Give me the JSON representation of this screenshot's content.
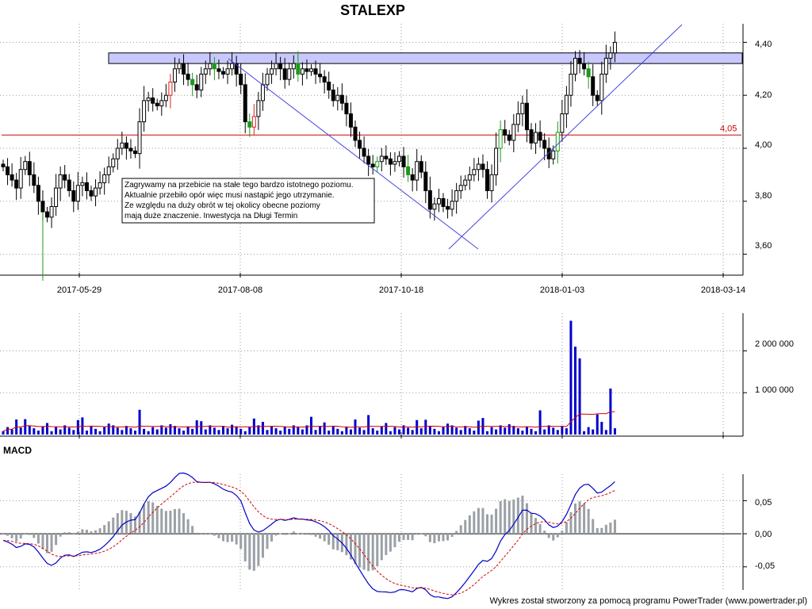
{
  "page": {
    "title": "STALEXP",
    "footer": "Wykres został stworzony za pomocą programu PowerTrader (www.powertrader.pl)"
  },
  "chart_data": [
    {
      "type": "candlestick",
      "title": "STALEXP",
      "x_ticks": [
        "2017-05-29",
        "2017-08-08",
        "2017-10-18",
        "2018-01-03",
        "2018-03-14"
      ],
      "y_ticks": [
        "3,60",
        "3,80",
        "4,00",
        "4,20",
        "4,40"
      ],
      "ylim": [
        3.53,
        4.47
      ],
      "hline": {
        "value": 4.05,
        "label": "4,05",
        "color": "#d00000"
      },
      "resistance_zone": {
        "from": 4.32,
        "to": 4.36
      },
      "annotation_lines": [
        "Zagrywamy na przebicie na stałe tego bardzo istotnego poziomu.",
        "Aktualnie przebiło opór więc musi nastąpić jego utrzymanie.",
        "Ze względu na duży obrót w tej okolicy obecne poziomy",
        "mają duże znaczenie. Inwestycja na Długi Termin"
      ],
      "closes": [
        3.93,
        3.9,
        3.88,
        3.85,
        3.92,
        3.95,
        3.9,
        3.86,
        3.8,
        3.76,
        3.74,
        3.78,
        3.85,
        3.9,
        3.88,
        3.84,
        3.8,
        3.86,
        3.87,
        3.84,
        3.82,
        3.85,
        3.87,
        3.9,
        3.93,
        3.96,
        4.0,
        4.02,
        4.0,
        3.99,
        3.98,
        4.1,
        4.18,
        4.19,
        4.17,
        4.16,
        4.18,
        4.2,
        4.25,
        4.3,
        4.32,
        4.28,
        4.26,
        4.24,
        4.22,
        4.28,
        4.3,
        4.32,
        4.3,
        4.29,
        4.28,
        4.3,
        4.32,
        4.28,
        4.24,
        4.1,
        4.08,
        4.12,
        4.18,
        4.24,
        4.28,
        4.3,
        4.32,
        4.3,
        4.26,
        4.3,
        4.32,
        4.28,
        4.3,
        4.29,
        4.3,
        4.28,
        4.27,
        4.25,
        4.22,
        4.18,
        4.2,
        4.17,
        4.13,
        4.08,
        4.03,
        4.0,
        3.97,
        3.94,
        3.93,
        3.95,
        3.97,
        3.96,
        3.94,
        3.95,
        3.97,
        3.93,
        3.9,
        3.88,
        3.95,
        3.91,
        3.84,
        3.77,
        3.79,
        3.81,
        3.78,
        3.77,
        3.8,
        3.84,
        3.86,
        3.88,
        3.9,
        3.92,
        3.94,
        3.92,
        3.84,
        3.9,
        4.0,
        4.07,
        4.05,
        4.03,
        4.09,
        4.13,
        4.17,
        4.07,
        4.02,
        4.06,
        4.03,
        4.0,
        3.96,
        3.99,
        4.06,
        4.13,
        4.2,
        4.28,
        4.34,
        4.32,
        4.3,
        4.27,
        4.2,
        4.18,
        4.28,
        4.34,
        4.36,
        4.4
      ]
    },
    {
      "type": "bar",
      "title": "",
      "y_ticks": [
        "1 000 000",
        "2 000 000"
      ],
      "ylim": [
        0,
        2900000
      ],
      "spikes": [
        {
          "index": 129,
          "value": 2720000
        },
        {
          "index": 130,
          "value": 2100000
        },
        {
          "index": 131,
          "value": 1820000
        },
        {
          "index": 138,
          "value": 1100000
        }
      ],
      "moving_average": {
        "color": "#d00000",
        "window": 20
      }
    },
    {
      "type": "line",
      "title": "MACD",
      "y_ticks": [
        "-0,05",
        "0,00",
        "0,05"
      ],
      "ylim": [
        -0.085,
        0.09
      ],
      "series": [
        {
          "role": "macd",
          "color": "#0000cc"
        },
        {
          "role": "signal",
          "color": "#d00000",
          "dashed": true
        },
        {
          "role": "histogram",
          "color": "#808080"
        }
      ]
    }
  ]
}
